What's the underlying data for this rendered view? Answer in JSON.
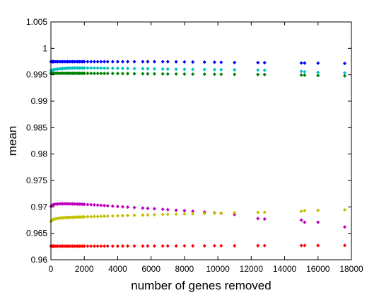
{
  "chart_data": {
    "type": "scatter",
    "title": "",
    "xlabel": "number of genes removed",
    "ylabel": "mean",
    "xlim": [
      0,
      18000
    ],
    "ylim": [
      0.96,
      1.005
    ],
    "x_ticks": [
      0,
      2000,
      4000,
      6000,
      8000,
      10000,
      12000,
      14000,
      16000,
      18000
    ],
    "y_ticks": [
      0.96,
      0.965,
      0.97,
      0.975,
      0.98,
      0.985,
      0.99,
      0.995,
      1,
      1.005
    ],
    "x_tick_labels": [
      "0",
      "2000",
      "4000",
      "6000",
      "8000",
      "10000",
      "12000",
      "14000",
      "16000",
      "18000"
    ],
    "y_tick_labels": [
      "0.96",
      "0.965",
      "0.97",
      "0.975",
      "0.98",
      "0.985",
      "0.99",
      "0.995",
      "1",
      "1.005"
    ],
    "grid": false,
    "legend": "none",
    "marker": "diamond",
    "x": [
      0,
      50,
      100,
      150,
      200,
      300,
      400,
      500,
      600,
      700,
      800,
      900,
      1000,
      1100,
      1200,
      1300,
      1400,
      1500,
      1600,
      1700,
      1800,
      1900,
      2000,
      2200,
      2400,
      2600,
      2800,
      3000,
      3200,
      3400,
      3700,
      4000,
      4300,
      4600,
      5000,
      5500,
      5800,
      6200,
      6700,
      7000,
      7500,
      8000,
      8500,
      9200,
      9800,
      10200,
      11000,
      12400,
      12800,
      15000,
      15200,
      16000,
      17600
    ],
    "series": [
      {
        "color": "#0000ff",
        "values": [
          0.99748,
          0.99748,
          0.99748,
          0.99748,
          0.99748,
          0.99748,
          0.99748,
          0.99748,
          0.99748,
          0.99748,
          0.99748,
          0.99748,
          0.99748,
          0.99748,
          0.99748,
          0.99748,
          0.99748,
          0.99748,
          0.99748,
          0.99748,
          0.99748,
          0.99748,
          0.99748,
          0.99748,
          0.99748,
          0.99748,
          0.99748,
          0.99748,
          0.99748,
          0.99748,
          0.99748,
          0.99748,
          0.99748,
          0.99748,
          0.99748,
          0.99748,
          0.99748,
          0.99748,
          0.99748,
          0.99748,
          0.99746,
          0.99744,
          0.99742,
          0.9974,
          0.99738,
          0.99736,
          0.99732,
          0.9973,
          0.99728,
          0.99724,
          0.99722,
          0.9972,
          0.99715
        ]
      },
      {
        "color": "#00c0c0",
        "values": [
          0.9958,
          0.99585,
          0.9959,
          0.99595,
          0.996,
          0.99605,
          0.99608,
          0.99612,
          0.99615,
          0.99618,
          0.9962,
          0.99622,
          0.99624,
          0.99625,
          0.99626,
          0.99627,
          0.99628,
          0.99628,
          0.99628,
          0.99628,
          0.99628,
          0.99628,
          0.99628,
          0.99628,
          0.99628,
          0.99628,
          0.99627,
          0.99626,
          0.99625,
          0.99624,
          0.99623,
          0.99622,
          0.99621,
          0.9962,
          0.99618,
          0.99616,
          0.99614,
          0.99612,
          0.9961,
          0.99608,
          0.99606,
          0.99604,
          0.99602,
          0.996,
          0.99598,
          0.99596,
          0.99594,
          0.9959,
          0.99585,
          0.99565,
          0.99555,
          0.99545,
          0.99535
        ]
      },
      {
        "color": "#008000",
        "values": [
          0.99528,
          0.99528,
          0.99528,
          0.99528,
          0.99528,
          0.99528,
          0.99528,
          0.99528,
          0.99528,
          0.99528,
          0.99528,
          0.99528,
          0.99528,
          0.99528,
          0.99528,
          0.99528,
          0.99528,
          0.99528,
          0.99528,
          0.99528,
          0.99527,
          0.99527,
          0.99527,
          0.99527,
          0.99527,
          0.99526,
          0.99526,
          0.99526,
          0.99525,
          0.99525,
          0.99524,
          0.99524,
          0.99523,
          0.99522,
          0.99521,
          0.9952,
          0.99519,
          0.99518,
          0.99517,
          0.99516,
          0.99515,
          0.99514,
          0.99513,
          0.99512,
          0.99511,
          0.9951,
          0.99508,
          0.99506,
          0.99504,
          0.99495,
          0.99492,
          0.99485,
          0.99478
        ]
      },
      {
        "color": "#c000c0",
        "values": [
          0.9701,
          0.97025,
          0.97035,
          0.97042,
          0.97048,
          0.97052,
          0.97055,
          0.97057,
          0.97058,
          0.97058,
          0.97058,
          0.97058,
          0.97058,
          0.97057,
          0.97057,
          0.97056,
          0.97055,
          0.97054,
          0.97053,
          0.97052,
          0.97051,
          0.9705,
          0.97048,
          0.97045,
          0.97042,
          0.97038,
          0.97034,
          0.9703,
          0.97025,
          0.9702,
          0.97014,
          0.97008,
          0.97002,
          0.96996,
          0.96988,
          0.96978,
          0.96972,
          0.96965,
          0.96955,
          0.96948,
          0.96938,
          0.96928,
          0.96918,
          0.96902,
          0.96888,
          0.96878,
          0.96855,
          0.9678,
          0.9677,
          0.9675,
          0.9671,
          0.9671,
          0.9662
        ]
      },
      {
        "color": "#c0c000",
        "values": [
          0.96725,
          0.9674,
          0.96752,
          0.9676,
          0.96767,
          0.96775,
          0.96782,
          0.96787,
          0.96791,
          0.96794,
          0.96796,
          0.96798,
          0.968,
          0.96802,
          0.96803,
          0.96804,
          0.96805,
          0.96806,
          0.96807,
          0.96808,
          0.96809,
          0.9681,
          0.96811,
          0.96813,
          0.96815,
          0.96817,
          0.96819,
          0.96821,
          0.96823,
          0.96825,
          0.96828,
          0.96831,
          0.96834,
          0.96837,
          0.9684,
          0.96845,
          0.96848,
          0.96852,
          0.96856,
          0.96859,
          0.96863,
          0.96867,
          0.96871,
          0.96876,
          0.96881,
          0.96884,
          0.96888,
          0.96895,
          0.96898,
          0.96915,
          0.9693,
          0.96935,
          0.96945
        ]
      },
      {
        "color": "#ff0000",
        "values": [
          0.96258,
          0.96258,
          0.96258,
          0.96258,
          0.96258,
          0.96258,
          0.96258,
          0.96258,
          0.96258,
          0.96258,
          0.96258,
          0.96258,
          0.96258,
          0.96258,
          0.96258,
          0.96258,
          0.96258,
          0.96258,
          0.96258,
          0.96258,
          0.96258,
          0.96258,
          0.96258,
          0.96258,
          0.96258,
          0.96258,
          0.96258,
          0.96258,
          0.96258,
          0.96258,
          0.96258,
          0.96258,
          0.96259,
          0.96259,
          0.96259,
          0.96259,
          0.9626,
          0.9626,
          0.9626,
          0.96261,
          0.96261,
          0.96262,
          0.96262,
          0.96263,
          0.96264,
          0.96264,
          0.96265,
          0.96266,
          0.96267,
          0.96269,
          0.9627,
          0.9627,
          0.96272
        ]
      }
    ]
  }
}
